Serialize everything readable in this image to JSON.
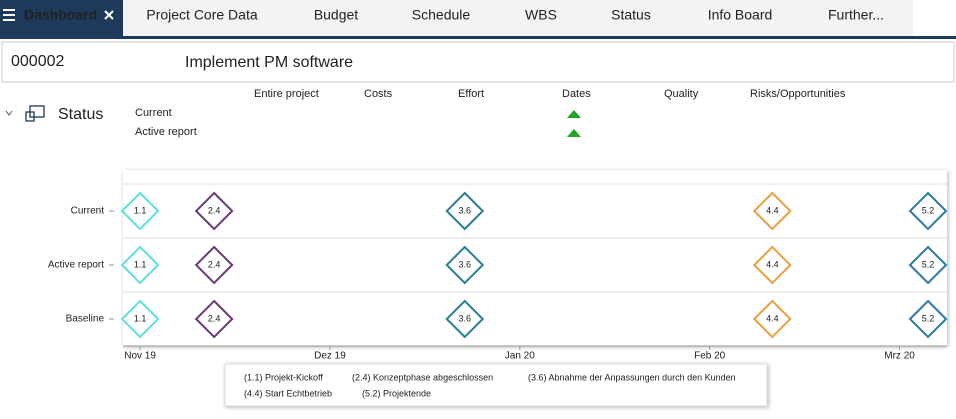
{
  "tabs": [
    "Dashboard",
    "Project Core Data",
    "Budget",
    "Schedule",
    "WBS",
    "Status",
    "Info Board",
    "Further..."
  ],
  "project": {
    "id": "000002",
    "name": "Implement PM software"
  },
  "status": {
    "title": "Status",
    "columns": [
      "Entire project",
      "Costs",
      "Effort",
      "Dates",
      "Quality",
      "Risks/Opportunities"
    ],
    "rows": [
      "Current",
      "Active report"
    ]
  },
  "chart_data": {
    "type": "milestone",
    "categories": [
      "Current",
      "Active report",
      "Baseline"
    ],
    "xlim": [
      -0.09,
      4.25
    ],
    "xticks": [
      {
        "value": 0,
        "label": "Nov 19"
      },
      {
        "value": 1,
        "label": "Dez 19"
      },
      {
        "value": 2,
        "label": "Jan 20"
      },
      {
        "value": 3,
        "label": "Feb 20"
      },
      {
        "value": 4,
        "label": "Mrz 20"
      }
    ],
    "series": [
      {
        "name": "(1.1) Projekt-Kickoff",
        "label": "1.1",
        "color": "#5fe0dc",
        "x": [
          0,
          0,
          0
        ]
      },
      {
        "name": "(2.4) Konzeptphase abgeschlossen",
        "label": "2.4",
        "color": "#6b3a78",
        "x": [
          0.39,
          0.39,
          0.39
        ]
      },
      {
        "name": "(3.6) Abnahme der Anpassungen durch den Kunden",
        "label": "3.6",
        "color": "#2a7f96",
        "x": [
          1.71,
          1.71,
          1.71
        ]
      },
      {
        "name": "(4.4) Start Echtbetrieb",
        "label": "4.4",
        "color": "#e8a040",
        "x": [
          3.33,
          3.33,
          3.33
        ]
      },
      {
        "name": "(5.2) Projektende",
        "label": "5.2",
        "color": "#2b7aa6",
        "x": [
          4.15,
          4.15,
          4.15
        ]
      }
    ]
  }
}
